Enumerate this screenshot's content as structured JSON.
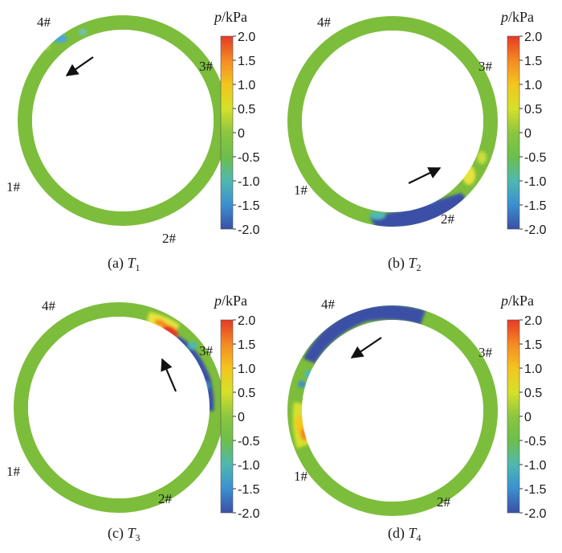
{
  "colorbar": {
    "title_var": "p",
    "title_unit": "/kPa",
    "ticks": [
      "2.0",
      "1.5",
      "1.0",
      "0.5",
      "0",
      "-0.5",
      "-1.0",
      "-1.5",
      "-2.0"
    ],
    "colors": [
      "#e53a26",
      "#f58a23",
      "#f4c51e",
      "#d6e02a",
      "#8cc63f",
      "#6cbf4b",
      "#4fb8b0",
      "#3b8fd1",
      "#3a4fa6"
    ]
  },
  "ring_base_color": "#7dbd3c",
  "panels": [
    {
      "id": "T1",
      "caption_prefix": "(a) ",
      "caption_var": "T",
      "caption_sub": "1",
      "markers": [
        "1#",
        "2#",
        "3#",
        "4#"
      ],
      "arrow": "counter-clockwise near 4#"
    },
    {
      "id": "T2",
      "caption_prefix": "(b) ",
      "caption_var": "T",
      "caption_sub": "2",
      "markers": [
        "1#",
        "2#",
        "3#",
        "4#"
      ],
      "arrow": "toward 3# near 2#"
    },
    {
      "id": "T3",
      "caption_prefix": "(c) ",
      "caption_var": "T",
      "caption_sub": "3",
      "markers": [
        "1#",
        "2#",
        "3#",
        "4#"
      ],
      "arrow": "upward near 3#"
    },
    {
      "id": "T4",
      "caption_prefix": "(d) ",
      "caption_var": "T",
      "caption_sub": "4",
      "markers": [
        "1#",
        "2#",
        "3#",
        "4#"
      ],
      "arrow": "down-left near 4#"
    }
  ]
}
